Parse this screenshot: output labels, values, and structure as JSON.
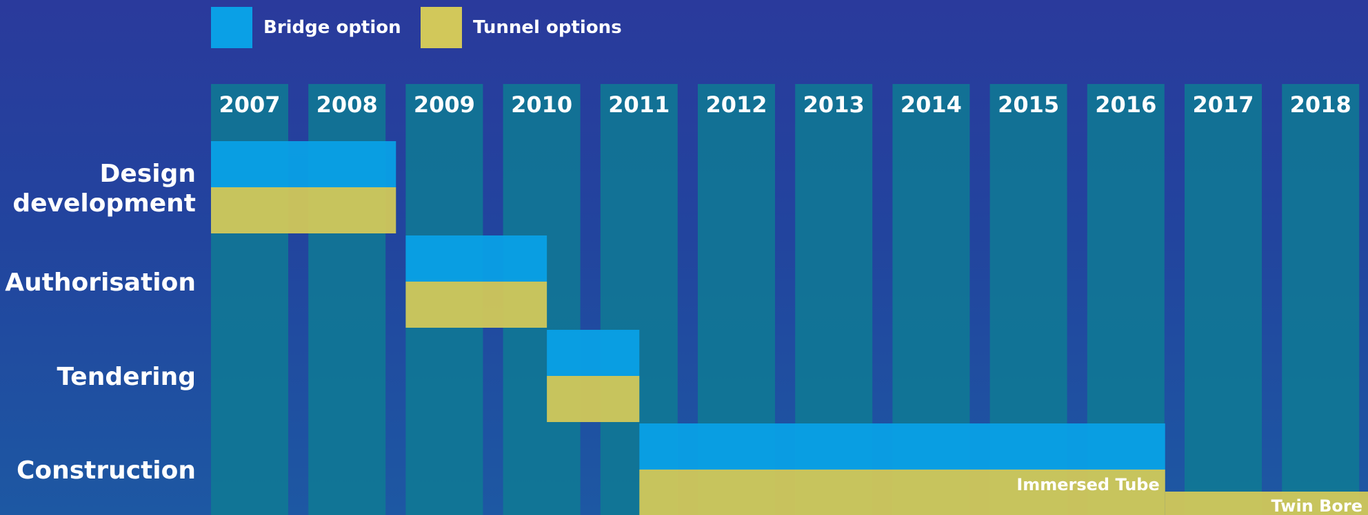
{
  "chart_data": {
    "type": "bar",
    "subtype": "gantt",
    "title": "",
    "xlabel": "",
    "ylabel": "",
    "x": [
      "2007",
      "2008",
      "2009",
      "2010",
      "2011",
      "2012",
      "2013",
      "2014",
      "2015",
      "2016",
      "2017",
      "2018"
    ],
    "xlim": [
      2007,
      2019
    ],
    "legend": {
      "placement": "top-left",
      "items": [
        {
          "name": "Bridge option",
          "color": "#0aa0e6"
        },
        {
          "name": "Tunnel options",
          "color": "#d2c85a"
        }
      ]
    },
    "phases": [
      "Design development",
      "Authorisation",
      "Tendering",
      "Construction"
    ],
    "series": [
      {
        "name": "Bridge option",
        "color": "#0aa0e6",
        "bars": [
          {
            "phase": "Design development",
            "start": 2007,
            "end": 2008.9
          },
          {
            "phase": "Authorisation",
            "start": 2009,
            "end": 2010.45
          },
          {
            "phase": "Tendering",
            "start": 2010.45,
            "end": 2011.4
          },
          {
            "phase": "Construction",
            "start": 2011.4,
            "end": 2016.8
          }
        ]
      },
      {
        "name": "Tunnel options",
        "color": "#d2c85a",
        "bars": [
          {
            "phase": "Design development",
            "start": 2007,
            "end": 2008.9
          },
          {
            "phase": "Authorisation",
            "start": 2009,
            "end": 2010.45
          },
          {
            "phase": "Tendering",
            "start": 2010.45,
            "end": 2011.4
          },
          {
            "phase": "Construction",
            "start": 2011.4,
            "end": 2016.8,
            "label": "Immersed Tube"
          },
          {
            "phase": "Construction",
            "start": 2016.8,
            "end": 2019,
            "label": "Twin Bore"
          }
        ]
      }
    ],
    "colors": {
      "column": "#0f7a94",
      "background": "#2a3a9c",
      "text": "#ffffff"
    },
    "grid": false
  }
}
